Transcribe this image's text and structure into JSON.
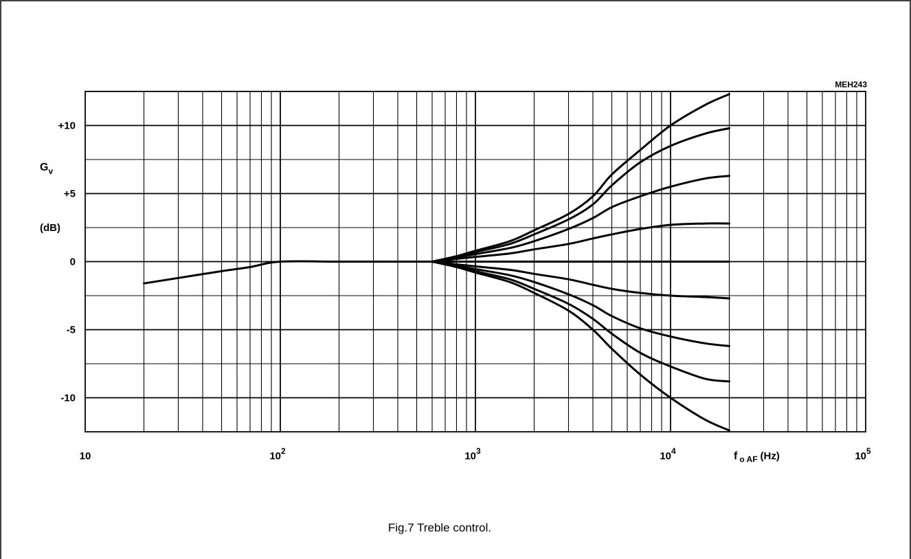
{
  "figure": {
    "code": "MEH243",
    "caption": "Fig.7  Treble control."
  },
  "chart_data": {
    "type": "line",
    "title": "",
    "xlabel_main": "f",
    "xlabel_sub": "o AF",
    "xlabel_unit": "(Hz)",
    "ylabel_main": "G",
    "ylabel_sub": "v",
    "ylabel_unit": "(dB)",
    "x_scale": "log",
    "xlim": [
      10,
      100000
    ],
    "ylim": [
      -12.5,
      12.5
    ],
    "grid": true,
    "x_ticks": [
      {
        "value": 10,
        "base": "10",
        "exp": ""
      },
      {
        "value": 100,
        "base": "10",
        "exp": "2"
      },
      {
        "value": 1000,
        "base": "10",
        "exp": "3"
      },
      {
        "value": 10000,
        "base": "10",
        "exp": "4"
      },
      {
        "value": 100000,
        "base": "10",
        "exp": "5"
      }
    ],
    "y_ticks": [
      {
        "value": 10,
        "label": "+10"
      },
      {
        "value": 5,
        "label": "+5"
      },
      {
        "value": 0,
        "label": "0"
      },
      {
        "value": -5,
        "label": "-5"
      },
      {
        "value": -10,
        "label": "-10"
      }
    ],
    "series": [
      {
        "x": [
          20,
          30,
          50,
          70,
          100,
          200,
          400,
          600
        ],
        "y": [
          -1.6,
          -1.2,
          -0.7,
          -0.4,
          0,
          0,
          0,
          0
        ]
      },
      {
        "x": [
          600,
          800,
          1000,
          1500,
          2000,
          3000,
          4000,
          5000,
          7000,
          10000,
          15000,
          20000
        ],
        "y": [
          0,
          0.4,
          0.8,
          1.5,
          2.3,
          3.5,
          4.8,
          6.4,
          8.2,
          10.0,
          11.5,
          12.3
        ]
      },
      {
        "x": [
          600,
          800,
          1000,
          1500,
          2000,
          3000,
          4000,
          5000,
          7000,
          10000,
          15000,
          20000
        ],
        "y": [
          0,
          0.35,
          0.7,
          1.3,
          2.0,
          3.1,
          4.2,
          5.6,
          7.3,
          8.5,
          9.4,
          9.8
        ]
      },
      {
        "x": [
          600,
          800,
          1000,
          1500,
          2000,
          3000,
          4000,
          5000,
          7000,
          10000,
          15000,
          20000
        ],
        "y": [
          0,
          0.3,
          0.55,
          1.0,
          1.5,
          2.4,
          3.2,
          4.0,
          4.8,
          5.5,
          6.1,
          6.3
        ]
      },
      {
        "x": [
          600,
          800,
          1000,
          1500,
          2000,
          3000,
          4000,
          5000,
          7000,
          10000,
          15000,
          20000
        ],
        "y": [
          0,
          0.2,
          0.35,
          0.6,
          0.9,
          1.3,
          1.7,
          2.0,
          2.4,
          2.7,
          2.8,
          2.8
        ]
      },
      {
        "x": [
          600,
          1000,
          2000,
          5000,
          10000,
          20000
        ],
        "y": [
          0,
          0,
          0,
          0,
          0,
          0
        ]
      },
      {
        "x": [
          600,
          800,
          1000,
          1500,
          2000,
          3000,
          4000,
          5000,
          7000,
          10000,
          15000,
          20000
        ],
        "y": [
          0,
          -0.2,
          -0.35,
          -0.6,
          -0.9,
          -1.3,
          -1.7,
          -2.0,
          -2.3,
          -2.5,
          -2.6,
          -2.7
        ]
      },
      {
        "x": [
          600,
          800,
          1000,
          1500,
          2000,
          3000,
          4000,
          5000,
          7000,
          10000,
          15000,
          20000
        ],
        "y": [
          0,
          -0.3,
          -0.55,
          -1.0,
          -1.5,
          -2.4,
          -3.2,
          -4.0,
          -4.9,
          -5.5,
          -6.0,
          -6.2
        ]
      },
      {
        "x": [
          600,
          800,
          1000,
          1500,
          2000,
          3000,
          4000,
          5000,
          7000,
          10000,
          15000,
          20000
        ],
        "y": [
          0,
          -0.35,
          -0.7,
          -1.3,
          -2.0,
          -3.1,
          -4.2,
          -5.3,
          -6.7,
          -7.7,
          -8.6,
          -8.8
        ]
      },
      {
        "x": [
          600,
          800,
          1000,
          1500,
          2000,
          3000,
          4000,
          5000,
          7000,
          10000,
          15000,
          20000
        ],
        "y": [
          0,
          -0.4,
          -0.8,
          -1.5,
          -2.3,
          -3.6,
          -5.0,
          -6.4,
          -8.3,
          -10.0,
          -11.6,
          -12.4
        ]
      }
    ]
  }
}
